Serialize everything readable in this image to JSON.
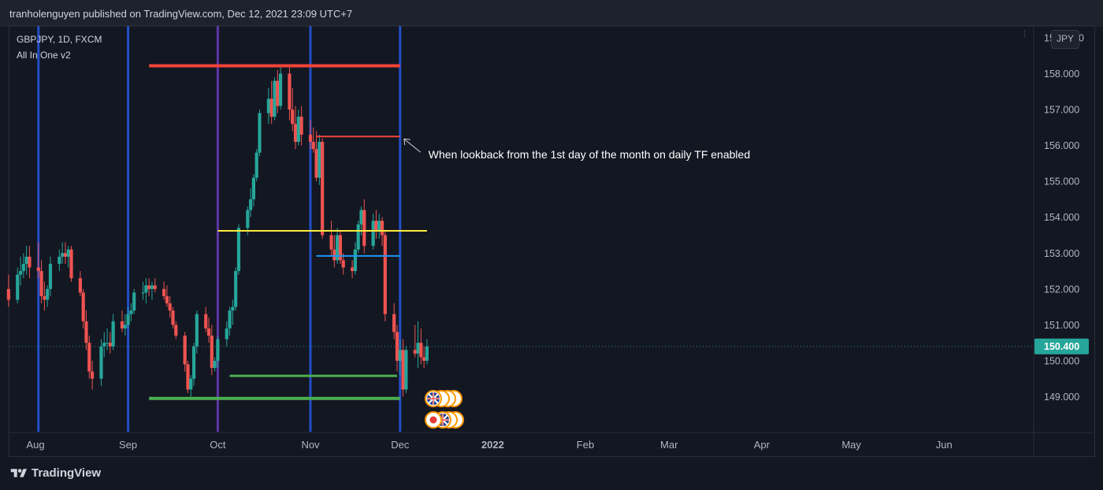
{
  "header": {
    "published": "tranholenguyen published on TradingView.com, Dec 12, 2021 23:09 UTC+7"
  },
  "legend": {
    "symbol": "GBPJPY, 1D, FXCM",
    "indicator": "All In One v2"
  },
  "currency_button": "JPY",
  "annotation": "When lookback from the 1st day of the month on daily TF enabled",
  "footer": {
    "brand": "TradingView"
  },
  "colors": {
    "background": "#131722",
    "up": "#26a69a",
    "down": "#ef5350",
    "month_line": "#2962ff",
    "quarter_line": "#673ab7",
    "prev_month_high": "#f44336",
    "prev_month_low": "#4caf50",
    "yellow_level": "#ffeb3b",
    "blue_level": "#2196f3",
    "last_price_bg": "#26a69a"
  },
  "chart_data": {
    "type": "candlestick",
    "symbol": "GBPJPY",
    "timeframe": "1D",
    "source": "FXCM",
    "currency": "JPY",
    "y_ticks": [
      149.0,
      150.0,
      151.0,
      152.0,
      153.0,
      154.0,
      155.0,
      156.0,
      157.0,
      158.0
    ],
    "y_tick_labels": [
      "149.000",
      "150.000",
      "151.000",
      "152.000",
      "153.000",
      "154.000",
      "155.000",
      "156.000",
      "157.000",
      "158.000"
    ],
    "y_top_label_partial": "15",
    "y_top_label_suffix": "0",
    "ylim": [
      148.05,
      159.2
    ],
    "x_labels": [
      {
        "label": "Aug",
        "date": "2021-08-01"
      },
      {
        "label": "Sep",
        "date": "2021-09-01"
      },
      {
        "label": "Oct",
        "date": "2021-10-01"
      },
      {
        "label": "Nov",
        "date": "2021-11-01"
      },
      {
        "label": "Dec",
        "date": "2021-12-01"
      },
      {
        "label": "2022",
        "date": "2022-01-01"
      },
      {
        "label": "Feb",
        "date": "2022-02-01"
      },
      {
        "label": "Mar",
        "date": "2022-03-01"
      },
      {
        "label": "Apr",
        "date": "2022-04-01"
      },
      {
        "label": "May",
        "date": "2022-05-01"
      },
      {
        "label": "Jun",
        "date": "2022-06-01"
      }
    ],
    "last_price": 150.4,
    "last_price_label": "150.400",
    "month_start_dates": [
      "2021-08-02",
      "2021-09-01",
      "2021-11-01",
      "2021-12-01"
    ],
    "quarter_start_dates": [
      "2021-10-01"
    ],
    "levels": [
      {
        "name": "prev-month-high",
        "from": "2021-09-08",
        "to": "2021-12-01",
        "value": 158.22,
        "color": "#f44336",
        "width": 4
      },
      {
        "name": "prev-month-low",
        "from": "2021-09-08",
        "to": "2021-12-01",
        "value": 148.95,
        "color": "#4caf50",
        "width": 4
      },
      {
        "name": "lookback-high",
        "from": "2021-11-03",
        "to": "2021-12-01",
        "value": 156.25,
        "color": "#f44336",
        "width": 2
      },
      {
        "name": "lookback-low",
        "from": "2021-10-05",
        "to": "2021-11-30",
        "value": 149.58,
        "color": "#4caf50",
        "width": 3
      },
      {
        "name": "mid-level",
        "from": "2021-10-01",
        "to": "2021-12-10",
        "value": 153.62,
        "color": "#ffeb3b",
        "width": 2
      },
      {
        "name": "open-level",
        "from": "2021-11-03",
        "to": "2021-12-01",
        "value": 152.92,
        "color": "#2196f3",
        "width": 2
      }
    ],
    "candles": [
      [
        "2021-07-23",
        152.0,
        152.4,
        151.5,
        151.7
      ],
      [
        "2021-07-26",
        151.7,
        152.6,
        151.6,
        152.4
      ],
      [
        "2021-07-27",
        152.4,
        152.9,
        152.1,
        152.5
      ],
      [
        "2021-07-28",
        152.5,
        153.0,
        152.3,
        152.7
      ],
      [
        "2021-07-29",
        152.7,
        153.2,
        152.4,
        152.9
      ],
      [
        "2021-07-30",
        152.9,
        153.2,
        152.3,
        152.6
      ],
      [
        "2021-08-02",
        152.6,
        153.3,
        152.3,
        152.5
      ],
      [
        "2021-08-03",
        152.5,
        152.8,
        151.6,
        151.8
      ],
      [
        "2021-08-04",
        151.8,
        152.2,
        151.4,
        151.7
      ],
      [
        "2021-08-05",
        151.7,
        152.1,
        151.5,
        152.0
      ],
      [
        "2021-08-06",
        152.0,
        152.9,
        151.8,
        152.7
      ],
      [
        "2021-08-09",
        152.7,
        153.1,
        152.5,
        152.9
      ],
      [
        "2021-08-10",
        152.9,
        153.3,
        152.7,
        153.0
      ],
      [
        "2021-08-11",
        153.0,
        153.3,
        152.7,
        152.9
      ],
      [
        "2021-08-12",
        152.9,
        153.2,
        152.6,
        153.1
      ],
      [
        "2021-08-13",
        153.1,
        153.2,
        152.2,
        152.3
      ],
      [
        "2021-08-16",
        152.3,
        152.5,
        151.8,
        151.9
      ],
      [
        "2021-08-17",
        151.9,
        152.0,
        150.9,
        151.1
      ],
      [
        "2021-08-18",
        151.1,
        151.4,
        150.3,
        150.5
      ],
      [
        "2021-08-19",
        150.5,
        150.7,
        149.5,
        149.7
      ],
      [
        "2021-08-20",
        149.7,
        150.0,
        149.2,
        149.5
      ],
      [
        "2021-08-23",
        149.5,
        150.6,
        149.3,
        150.4
      ],
      [
        "2021-08-24",
        150.4,
        150.8,
        150.1,
        150.5
      ],
      [
        "2021-08-25",
        150.5,
        150.9,
        150.3,
        150.5
      ],
      [
        "2021-08-26",
        150.5,
        150.8,
        150.2,
        150.4
      ],
      [
        "2021-08-27",
        150.4,
        151.3,
        150.3,
        151.1
      ],
      [
        "2021-08-30",
        151.1,
        151.4,
        150.8,
        150.9
      ],
      [
        "2021-08-31",
        150.9,
        151.3,
        150.7,
        151.0
      ],
      [
        "2021-09-01",
        151.0,
        151.5,
        150.9,
        151.3
      ],
      [
        "2021-09-02",
        151.3,
        151.6,
        151.1,
        151.4
      ],
      [
        "2021-09-03",
        151.4,
        152.0,
        151.3,
        151.9
      ],
      [
        "2021-09-06",
        151.9,
        152.2,
        151.7,
        151.9
      ],
      [
        "2021-09-07",
        151.9,
        152.3,
        151.6,
        152.1
      ],
      [
        "2021-09-08",
        152.1,
        152.3,
        151.8,
        152.0
      ],
      [
        "2021-09-09",
        152.0,
        152.2,
        151.7,
        152.1
      ],
      [
        "2021-09-10",
        152.1,
        152.3,
        151.9,
        152.0
      ],
      [
        "2021-09-13",
        152.0,
        152.2,
        151.7,
        151.8
      ],
      [
        "2021-09-14",
        151.8,
        152.1,
        151.5,
        151.6
      ],
      [
        "2021-09-15",
        151.6,
        151.8,
        151.2,
        151.4
      ],
      [
        "2021-09-16",
        151.4,
        151.5,
        150.9,
        151.0
      ],
      [
        "2021-09-17",
        151.0,
        151.1,
        150.6,
        150.7
      ],
      [
        "2021-09-20",
        150.7,
        150.8,
        149.7,
        149.9
      ],
      [
        "2021-09-21",
        149.9,
        150.0,
        149.1,
        149.2
      ],
      [
        "2021-09-22",
        149.2,
        149.6,
        149.0,
        149.5
      ],
      [
        "2021-09-23",
        149.5,
        150.5,
        149.3,
        150.4
      ],
      [
        "2021-09-24",
        150.4,
        151.4,
        150.2,
        151.3
      ],
      [
        "2021-09-27",
        151.3,
        151.5,
        150.8,
        150.9
      ],
      [
        "2021-09-28",
        150.9,
        151.2,
        150.5,
        150.7
      ],
      [
        "2021-09-29",
        150.7,
        151.0,
        149.6,
        149.8
      ],
      [
        "2021-09-30",
        149.8,
        150.1,
        149.7,
        150.0
      ],
      [
        "2021-10-01",
        150.0,
        150.7,
        149.8,
        150.6
      ],
      [
        "2021-10-04",
        150.6,
        151.1,
        150.4,
        150.9
      ],
      [
        "2021-10-05",
        150.9,
        151.5,
        150.7,
        151.4
      ],
      [
        "2021-10-06",
        151.4,
        151.7,
        151.0,
        151.5
      ],
      [
        "2021-10-07",
        151.5,
        152.6,
        151.4,
        152.5
      ],
      [
        "2021-10-08",
        152.5,
        153.8,
        152.4,
        153.7
      ],
      [
        "2021-10-11",
        153.7,
        154.3,
        153.5,
        154.2
      ],
      [
        "2021-10-12",
        154.2,
        154.8,
        154.0,
        154.5
      ],
      [
        "2021-10-13",
        154.5,
        155.2,
        154.3,
        155.1
      ],
      [
        "2021-10-14",
        155.1,
        155.9,
        155.0,
        155.8
      ],
      [
        "2021-10-15",
        155.8,
        157.0,
        155.7,
        156.9
      ],
      [
        "2021-10-18",
        156.9,
        157.6,
        156.6,
        157.3
      ],
      [
        "2021-10-19",
        157.3,
        157.8,
        156.6,
        156.8
      ],
      [
        "2021-10-20",
        156.8,
        157.9,
        156.7,
        157.8
      ],
      [
        "2021-10-21",
        157.8,
        158.1,
        156.9,
        157.1
      ],
      [
        "2021-10-22",
        157.1,
        158.2,
        157.0,
        158.0
      ],
      [
        "2021-10-25",
        158.0,
        158.2,
        156.7,
        157.0
      ],
      [
        "2021-10-26",
        157.0,
        157.6,
        156.4,
        156.6
      ],
      [
        "2021-10-27",
        156.6,
        157.1,
        155.9,
        156.1
      ],
      [
        "2021-10-28",
        156.1,
        157.0,
        156.0,
        156.8
      ],
      [
        "2021-10-29",
        156.8,
        157.1,
        156.0,
        156.3
      ],
      [
        "2021-11-01",
        156.3,
        156.7,
        155.9,
        156.1
      ],
      [
        "2021-11-02",
        156.1,
        156.5,
        155.8,
        155.9
      ],
      [
        "2021-11-03",
        155.9,
        156.4,
        155.0,
        155.1
      ],
      [
        "2021-11-04",
        155.1,
        156.3,
        154.9,
        156.1
      ],
      [
        "2021-11-05",
        156.1,
        156.2,
        153.4,
        153.5
      ],
      [
        "2021-11-08",
        153.5,
        153.9,
        152.9,
        153.1
      ],
      [
        "2021-11-09",
        153.1,
        153.5,
        152.6,
        152.8
      ],
      [
        "2021-11-10",
        152.8,
        153.7,
        152.7,
        153.5
      ],
      [
        "2021-11-11",
        153.5,
        153.6,
        152.7,
        152.8
      ],
      [
        "2021-11-12",
        152.8,
        153.0,
        152.4,
        152.6
      ],
      [
        "2021-11-15",
        152.6,
        152.8,
        152.3,
        152.5
      ],
      [
        "2021-11-16",
        152.5,
        153.3,
        152.4,
        153.1
      ],
      [
        "2021-11-17",
        153.1,
        153.9,
        153.0,
        153.8
      ],
      [
        "2021-11-18",
        153.8,
        154.3,
        153.5,
        154.2
      ],
      [
        "2021-11-19",
        154.2,
        154.5,
        153.0,
        153.2
      ],
      [
        "2021-11-22",
        153.2,
        154.1,
        153.1,
        153.9
      ],
      [
        "2021-11-23",
        153.9,
        154.2,
        153.4,
        153.6
      ],
      [
        "2021-11-24",
        153.6,
        154.1,
        153.4,
        153.9
      ],
      [
        "2021-11-25",
        153.9,
        154.0,
        153.2,
        153.5
      ],
      [
        "2021-11-26",
        153.5,
        153.6,
        151.1,
        151.3
      ],
      [
        "2021-11-29",
        151.3,
        151.6,
        150.6,
        150.8
      ],
      [
        "2021-11-30",
        150.8,
        151.0,
        149.7,
        150.0
      ],
      [
        "2021-12-01",
        150.0,
        150.6,
        149.6,
        150.3
      ],
      [
        "2021-12-02",
        150.3,
        150.6,
        149.0,
        149.2
      ],
      [
        "2021-12-03",
        149.2,
        150.4,
        149.1,
        150.3
      ],
      [
        "2021-12-06",
        150.3,
        151.0,
        150.1,
        150.2
      ],
      [
        "2021-12-07",
        150.2,
        151.1,
        149.8,
        150.5
      ],
      [
        "2021-12-08",
        150.5,
        150.9,
        149.9,
        150.1
      ],
      [
        "2021-12-09",
        150.1,
        150.4,
        149.8,
        150.0
      ],
      [
        "2021-12-10",
        150.0,
        150.6,
        149.9,
        150.4
      ]
    ]
  }
}
